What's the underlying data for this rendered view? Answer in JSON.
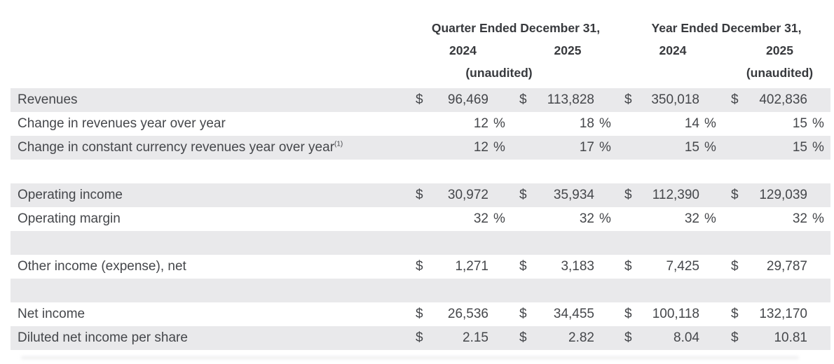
{
  "table": {
    "header": {
      "groups": [
        {
          "title": "Quarter Ended December 31,",
          "years": [
            "2024",
            "2025"
          ],
          "unaudited": "(unaudited)"
        },
        {
          "title": "Year Ended December 31,",
          "years": [
            "2024",
            "2025"
          ],
          "unaudited": "(unaudited)"
        }
      ]
    },
    "currency_symbol": "$",
    "percent_symbol": "%",
    "rows": [
      {
        "label": "Revenues",
        "type": "currency",
        "shaded": true,
        "values": [
          "96,469",
          "113,828",
          "350,018",
          "402,836"
        ]
      },
      {
        "label": "Change in revenues year over year",
        "type": "percent",
        "shaded": false,
        "values": [
          "12",
          "18",
          "14",
          "15"
        ]
      },
      {
        "label": "Change in constant currency revenues year over year",
        "sup": "(1)",
        "type": "percent",
        "shaded": true,
        "values": [
          "12",
          "17",
          "15",
          "15"
        ]
      },
      {
        "label": "",
        "type": "spacer",
        "shaded": false,
        "values": []
      },
      {
        "label": "Operating income",
        "type": "currency",
        "shaded": true,
        "values": [
          "30,972",
          "35,934",
          "112,390",
          "129,039"
        ]
      },
      {
        "label": "Operating margin",
        "type": "percent",
        "shaded": false,
        "values": [
          "32",
          "32",
          "32",
          "32"
        ]
      },
      {
        "label": "",
        "type": "spacer",
        "shaded": true,
        "values": []
      },
      {
        "label": "Other income (expense), net",
        "type": "currency",
        "shaded": false,
        "values": [
          "1,271",
          "3,183",
          "7,425",
          "29,787"
        ]
      },
      {
        "label": "",
        "type": "spacer",
        "shaded": true,
        "values": []
      },
      {
        "label": "Net income",
        "type": "currency",
        "shaded": false,
        "values": [
          "26,536",
          "34,455",
          "100,118",
          "132,170"
        ]
      },
      {
        "label": "Diluted net income per share",
        "type": "currency",
        "shaded": true,
        "values": [
          "2.15",
          "2.82",
          "8.04",
          "10.81"
        ]
      }
    ]
  },
  "colors": {
    "background": "#ffffff",
    "row_shade": "#e9e9eb",
    "text": "#45474b",
    "header_text": "#37393d"
  }
}
